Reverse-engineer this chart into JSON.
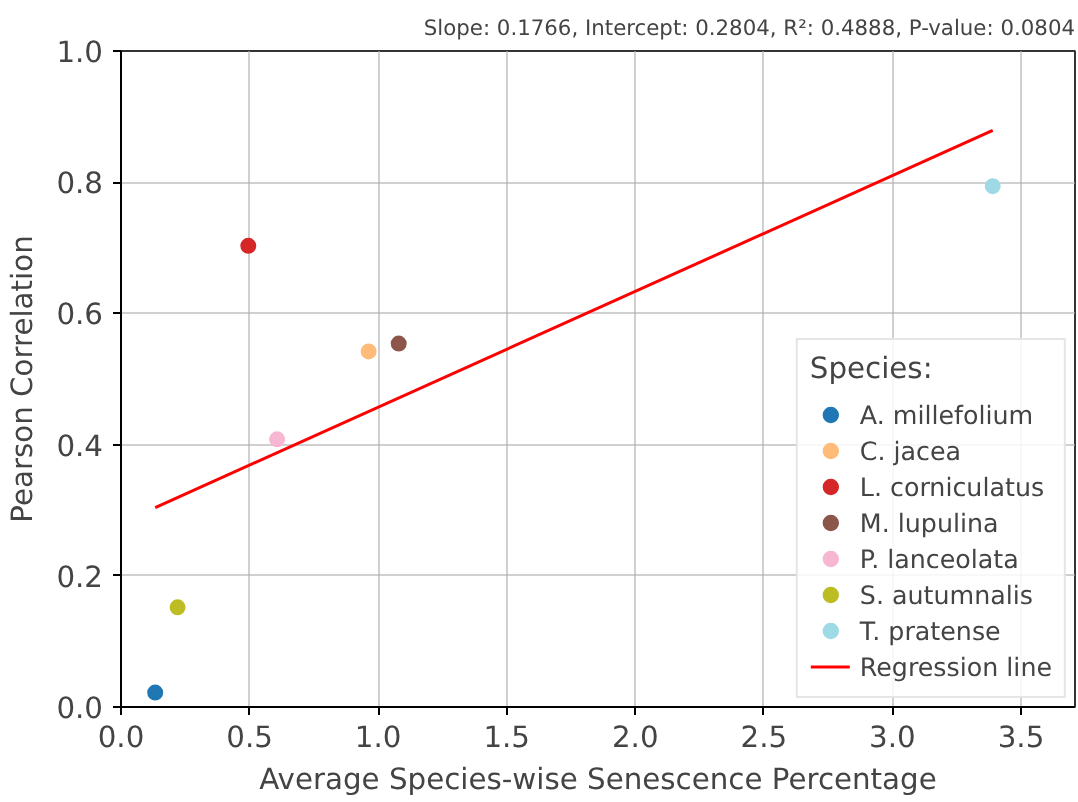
{
  "chart_data": {
    "type": "scatter",
    "title": "Slope: 0.1766, Intercept: 0.2804, R²: 0.4888, P-value: 0.0804",
    "xlabel": "Average Species-wise Senescence Percentage",
    "ylabel": "Pearson Correlation",
    "legend_title": "Species:",
    "xlim": [
      0,
      3.71
    ],
    "ylim": [
      0,
      1.0
    ],
    "xticks": [
      {
        "value": 0,
        "label": "0.0"
      },
      0.5,
      {
        "value": 1,
        "label": "1.0"
      },
      1.5,
      {
        "value": 2,
        "label": "2.0"
      },
      2.5,
      {
        "value": 3,
        "label": "3.0"
      },
      3.5
    ],
    "yticks": [
      {
        "value": 0,
        "label": "0.0"
      },
      0.2,
      0.4,
      0.6,
      0.8,
      {
        "value": 1,
        "label": "1.0"
      }
    ],
    "grid": true,
    "legend": "bottom right",
    "series": [
      {
        "name": "A. millefolium",
        "marker": "circle",
        "color": "#1f77b4",
        "x": [
          0.133
        ],
        "values": [
          0.022
        ]
      },
      {
        "name": "C. jacea",
        "marker": "circle",
        "color": "#ffbb78",
        "x": [
          0.963
        ],
        "values": [
          0.542
        ]
      },
      {
        "name": "L. corniculatus",
        "marker": "circle",
        "color": "#d62728",
        "x": [
          0.495
        ],
        "values": [
          0.703
        ]
      },
      {
        "name": "M. lupulina",
        "marker": "circle",
        "color": "#8c564b",
        "x": [
          1.08
        ],
        "values": [
          0.554
        ]
      },
      {
        "name": "P. lanceolata",
        "marker": "circle",
        "color": "#f7b6d2",
        "x": [
          0.607
        ],
        "values": [
          0.408
        ]
      },
      {
        "name": "S. autumnalis",
        "marker": "circle",
        "color": "#bcbd22",
        "x": [
          0.22
        ],
        "values": [
          0.152
        ]
      },
      {
        "name": "T. pratense",
        "marker": "circle",
        "color": "#9edae5",
        "x": [
          3.39
        ],
        "values": [
          0.794
        ]
      },
      {
        "name": "Regression line",
        "type": "line",
        "marker": "none",
        "color": "#ff0000",
        "x": [
          0.133,
          3.39
        ],
        "values": [
          0.304,
          0.879
        ]
      }
    ]
  }
}
